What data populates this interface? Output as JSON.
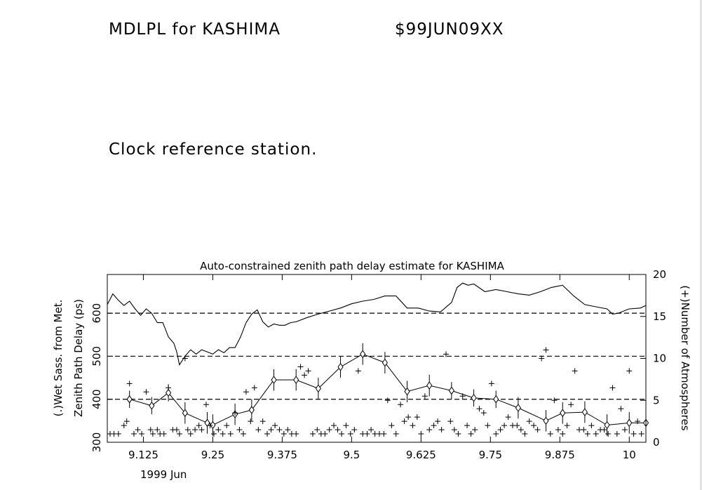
{
  "header": {
    "program_title": "MDLPL for KASHIMA",
    "experiment_code": "$99JUN09XX",
    "station_note": "Clock reference station."
  },
  "chart_data": {
    "type": "line",
    "title": "Auto-constrained zenith path delay estimate for KASHIMA",
    "xlabel": "1999 Jun",
    "ylabel_left_line1": "(.)Wet Sass. from Met.",
    "ylabel_left_line2": "Zenith Path Delay (ps)",
    "ylabel_right": "(+)Number of Atmospheres",
    "xlim": [
      9.06,
      10.03
    ],
    "ylim_left": [
      300,
      690
    ],
    "ylim_right": [
      0,
      20
    ],
    "x_ticks": [
      9.125,
      9.25,
      9.375,
      9.5,
      9.625,
      9.75,
      9.875,
      10
    ],
    "x_tick_labels": [
      "9.125",
      "9.25",
      "9.375",
      "9.5",
      "9.625",
      "9.75",
      "9.875",
      "10"
    ],
    "y_ticks_left": [
      300,
      400,
      500,
      600
    ],
    "y_tick_labels_left": [
      "300",
      "400",
      "500",
      "600"
    ],
    "y_ticks_right": [
      0,
      5,
      10,
      15,
      20
    ],
    "y_tick_labels_right": [
      "0",
      "5",
      "10",
      "15",
      "20"
    ],
    "hlines_dashed": [
      400,
      500,
      600
    ],
    "wet_saastamoinen": {
      "x": [
        9.06,
        9.07,
        9.08,
        9.09,
        9.1,
        9.11,
        9.12,
        9.13,
        9.14,
        9.15,
        9.16,
        9.17,
        9.18,
        9.185,
        9.19,
        9.2,
        9.21,
        9.22,
        9.23,
        9.24,
        9.25,
        9.26,
        9.27,
        9.28,
        9.29,
        9.3,
        9.31,
        9.32,
        9.33,
        9.34,
        9.35,
        9.36,
        9.37,
        9.38,
        9.39,
        9.4,
        9.42,
        9.44,
        9.46,
        9.48,
        9.5,
        9.52,
        9.54,
        9.56,
        9.58,
        9.6,
        9.62,
        9.64,
        9.66,
        9.68,
        9.69,
        9.7,
        9.71,
        9.72,
        9.74,
        9.76,
        9.78,
        9.8,
        9.82,
        9.84,
        9.86,
        9.88,
        9.9,
        9.92,
        9.94,
        9.96,
        9.97,
        9.98,
        10.0,
        10.02,
        10.03
      ],
      "y": [
        620,
        645,
        630,
        618,
        628,
        610,
        595,
        610,
        600,
        578,
        578,
        545,
        530,
        510,
        480,
        500,
        515,
        505,
        515,
        510,
        505,
        515,
        508,
        520,
        520,
        545,
        578,
        598,
        608,
        580,
        568,
        575,
        572,
        572,
        578,
        580,
        590,
        598,
        605,
        612,
        622,
        628,
        632,
        640,
        640,
        612,
        612,
        605,
        603,
        625,
        660,
        670,
        665,
        668,
        650,
        655,
        650,
        645,
        642,
        650,
        660,
        665,
        640,
        620,
        615,
        610,
        598,
        600,
        610,
        612,
        618
      ]
    },
    "estimate": {
      "x": [
        9.1,
        9.14,
        9.17,
        9.2,
        9.24,
        9.25,
        9.29,
        9.32,
        9.36,
        9.4,
        9.44,
        9.48,
        9.52,
        9.56,
        9.6,
        9.64,
        9.68,
        9.72,
        9.76,
        9.8,
        9.85,
        9.88,
        9.92,
        9.96,
        10.0,
        10.03
      ],
      "y": [
        400,
        385,
        415,
        368,
        345,
        340,
        365,
        375,
        445,
        445,
        425,
        475,
        505,
        485,
        418,
        432,
        420,
        403,
        400,
        380,
        350,
        368,
        370,
        340,
        345,
        345
      ],
      "err": [
        20,
        20,
        20,
        25,
        25,
        25,
        25,
        25,
        25,
        25,
        25,
        25,
        25,
        25,
        25,
        25,
        20,
        20,
        20,
        25,
        25,
        25,
        25,
        25,
        25,
        0
      ]
    },
    "num_atmospheres": {
      "x": [
        9.065,
        9.072,
        9.08,
        9.09,
        9.095,
        9.1,
        9.108,
        9.115,
        9.122,
        9.13,
        9.138,
        9.142,
        9.15,
        9.155,
        9.162,
        9.17,
        9.178,
        9.185,
        9.19,
        9.2,
        9.205,
        9.21,
        9.218,
        9.225,
        9.23,
        9.238,
        9.245,
        9.252,
        9.26,
        9.268,
        9.275,
        9.282,
        9.29,
        9.298,
        9.305,
        9.31,
        9.318,
        9.325,
        9.332,
        9.34,
        9.348,
        9.355,
        9.362,
        9.37,
        9.378,
        9.385,
        9.392,
        9.4,
        9.408,
        9.415,
        9.422,
        9.43,
        9.438,
        9.445,
        9.452,
        9.46,
        9.468,
        9.475,
        9.482,
        9.49,
        9.498,
        9.505,
        9.512,
        9.52,
        9.528,
        9.535,
        9.542,
        9.55,
        9.558,
        9.565,
        9.572,
        9.58,
        9.588,
        9.595,
        9.602,
        9.61,
        9.618,
        9.625,
        9.632,
        9.64,
        9.648,
        9.655,
        9.662,
        9.67,
        9.678,
        9.685,
        9.692,
        9.7,
        9.708,
        9.715,
        9.722,
        9.73,
        9.738,
        9.745,
        9.752,
        9.76,
        9.768,
        9.775,
        9.782,
        9.79,
        9.798,
        9.805,
        9.812,
        9.82,
        9.828,
        9.835,
        9.842,
        9.85,
        9.858,
        9.865,
        9.872,
        9.88,
        9.888,
        9.895,
        9.902,
        9.91,
        9.918,
        9.925,
        9.932,
        9.94,
        9.948,
        9.955,
        9.962,
        9.97,
        9.978,
        9.985,
        9.992,
        10.0,
        10.008,
        10.015,
        10.022
      ],
      "y": [
        1,
        1,
        1,
        2,
        2.5,
        7,
        1,
        1.5,
        1,
        6,
        1.5,
        1,
        1.5,
        1,
        1,
        6.5,
        1.5,
        1.5,
        1,
        10,
        1.5,
        1,
        1.5,
        2,
        1.5,
        4.5,
        2,
        1,
        1.5,
        1,
        2,
        1,
        3.5,
        1.5,
        1,
        6,
        2.5,
        6.5,
        1.5,
        2.5,
        1,
        1.5,
        2,
        1.5,
        1,
        1.5,
        1,
        1,
        9,
        8,
        8.5,
        1,
        1.5,
        1,
        1,
        1.5,
        2,
        1.5,
        1,
        2,
        1,
        1.5,
        8.5,
        1,
        1,
        1.5,
        1,
        1,
        1,
        5,
        2,
        1,
        4.5,
        2.5,
        3,
        2,
        3,
        1,
        5.5,
        1.5,
        2,
        2.5,
        1.5,
        10.5,
        2.5,
        1.5,
        1,
        5.5,
        2,
        1,
        1.5,
        4,
        3.5,
        2,
        7,
        1,
        1.5,
        2,
        3,
        2,
        2,
        1.5,
        1,
        2.5,
        2,
        1.5,
        10,
        11,
        1,
        5,
        1.5,
        1,
        2,
        4.5,
        8.5,
        1.5,
        1.5,
        1,
        2,
        1,
        1.5,
        1.5,
        1,
        6.5,
        1,
        4,
        1.5,
        8.5,
        1,
        2.5,
        1
      ]
    }
  }
}
